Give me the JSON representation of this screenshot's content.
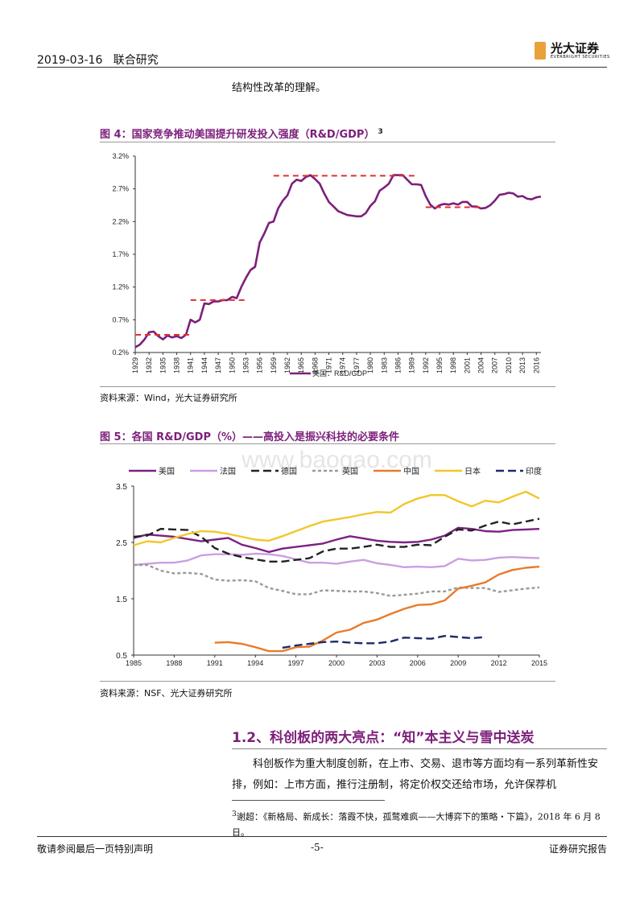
{
  "header": {
    "date": "2019-03-16",
    "section": "联合研究",
    "logo_cn": "光大证券",
    "logo_en": "EVERBRIGHT SECURITIES"
  },
  "intro_text": "结构性改革的理解。",
  "figure4": {
    "title": "图 4：国家竞争推动美国提升研发投入强度（R&D/GDP）",
    "footnote_ref": "3",
    "source": "资料来源：Wind，光大证券研究所",
    "legend": "美国：R&D/GDP"
  },
  "figure5": {
    "title": "图 5：各国 R&D/GDP（%）——高投入是振兴科技的必要条件",
    "source": "资料来源：NSF、光大证券研究所",
    "watermark": "www.baogao.com"
  },
  "section": {
    "heading": "1.2、科创板的两大亮点：“知”本主义与雪中送炭",
    "paragraph": "科创板作为重大制度创新，在上市、交易、退市等方面均有一系列革新性安排，例如：上市方面，推行注册制，将定价权交还给市场，允许保荐机"
  },
  "footnote": {
    "num": "3",
    "text": "谢超：《新格局、新成长：落霞不快，孤鹜难疯——大博弈下的策略・下篇》，2018 年 6 月 8 日。"
  },
  "footer": {
    "left": "敬请参阅最后一页特别声明",
    "page": "-5-",
    "right": "证券研究报告"
  },
  "chart_data": [
    {
      "type": "line",
      "title": "",
      "ylim": [
        0.2,
        3.2
      ],
      "yticks": [
        "0.2%",
        "0.7%",
        "1.2%",
        "1.7%",
        "2.2%",
        "2.7%",
        "3.2%"
      ],
      "xticks": [
        "1929",
        "1932",
        "1935",
        "1938",
        "1941",
        "1944",
        "1947",
        "1950",
        "1953",
        "1956",
        "1959",
        "1962",
        "1965",
        "1968",
        "1971",
        "1974",
        "1977",
        "1980",
        "1983",
        "1986",
        "1989",
        "1992",
        "1995",
        "1998",
        "2001",
        "2004",
        "2007",
        "2010",
        "2013",
        "2016"
      ],
      "colors": {
        "line": "#7c1f7a",
        "ref": "#e03030"
      },
      "series": [
        {
          "name": "美国：R&D/GDP",
          "x": [
            1929,
            1930,
            1931,
            1932,
            1933,
            1934,
            1935,
            1936,
            1937,
            1938,
            1939,
            1940,
            1941,
            1942,
            1943,
            1944,
            1945,
            1946,
            1947,
            1948,
            1949,
            1950,
            1951,
            1952,
            1953,
            1954,
            1955,
            1956,
            1957,
            1958,
            1959,
            1960,
            1961,
            1962,
            1963,
            1964,
            1965,
            1966,
            1967,
            1968,
            1969,
            1970,
            1971,
            1972,
            1973,
            1974,
            1975,
            1976,
            1977,
            1978,
            1979,
            1980,
            1981,
            1982,
            1983,
            1984,
            1985,
            1986,
            1987,
            1988,
            1989,
            1990,
            1991,
            1992,
            1993,
            1994,
            1995,
            1996,
            1997,
            1998,
            1999,
            2000,
            2001,
            2002,
            2003,
            2004,
            2005,
            2006,
            2007,
            2008,
            2009,
            2010,
            2011,
            2012,
            2013,
            2014,
            2015,
            2016,
            2017
          ],
          "values": [
            0.28,
            0.32,
            0.4,
            0.51,
            0.52,
            0.45,
            0.4,
            0.46,
            0.43,
            0.45,
            0.42,
            0.47,
            0.7,
            0.66,
            0.7,
            0.95,
            0.94,
            0.98,
            0.98,
            1.0,
            1.0,
            1.05,
            1.03,
            1.2,
            1.34,
            1.46,
            1.51,
            1.88,
            2.02,
            2.18,
            2.2,
            2.4,
            2.52,
            2.6,
            2.78,
            2.84,
            2.82,
            2.88,
            2.91,
            2.85,
            2.78,
            2.63,
            2.5,
            2.43,
            2.36,
            2.33,
            2.3,
            2.29,
            2.28,
            2.28,
            2.33,
            2.44,
            2.51,
            2.67,
            2.72,
            2.78,
            2.91,
            2.91,
            2.91,
            2.84,
            2.77,
            2.77,
            2.76,
            2.59,
            2.46,
            2.4,
            2.45,
            2.47,
            2.46,
            2.48,
            2.46,
            2.5,
            2.5,
            2.43,
            2.43,
            2.4,
            2.41,
            2.45,
            2.52,
            2.61,
            2.62,
            2.64,
            2.63,
            2.58,
            2.59,
            2.55,
            2.54,
            2.57,
            2.58
          ]
        }
      ],
      "reference_lines": [
        {
          "x": [
            1929,
            1941
          ],
          "y": 0.47
        },
        {
          "x": [
            1941,
            1953
          ],
          "y": 1.0
        },
        {
          "x": [
            1959,
            1990
          ],
          "y": 2.9
        },
        {
          "x": [
            1992,
            2004
          ],
          "y": 2.42
        }
      ]
    },
    {
      "type": "line",
      "title": "",
      "ylim": [
        0.5,
        3.5
      ],
      "yticks": [
        "0.5",
        "1.5",
        "2.5",
        "3.5"
      ],
      "xticks": [
        "1985",
        "1988",
        "1991",
        "1994",
        "1997",
        "2000",
        "2003",
        "2006",
        "2009",
        "2012",
        "2015"
      ],
      "legend_position": "top",
      "x": [
        1985,
        1986,
        1987,
        1988,
        1989,
        1990,
        1991,
        1992,
        1993,
        1994,
        1995,
        1996,
        1997,
        1998,
        1999,
        2000,
        2001,
        2002,
        2003,
        2004,
        2005,
        2006,
        2007,
        2008,
        2009,
        2010,
        2011,
        2012,
        2013,
        2014,
        2015
      ],
      "series": [
        {
          "name": "美国",
          "color": "#7b2182",
          "dash": "solid",
          "values": [
            2.58,
            2.64,
            2.62,
            2.6,
            2.56,
            2.52,
            2.55,
            2.58,
            2.46,
            2.4,
            2.33,
            2.39,
            2.42,
            2.45,
            2.48,
            2.55,
            2.61,
            2.57,
            2.53,
            2.51,
            2.5,
            2.51,
            2.55,
            2.62,
            2.76,
            2.74,
            2.7,
            2.69,
            2.72,
            2.73,
            2.74
          ]
        },
        {
          "name": "法国",
          "color": "#c9a0e0",
          "dash": "solid",
          "values": [
            2.1,
            2.12,
            2.14,
            2.14,
            2.18,
            2.27,
            2.29,
            2.29,
            2.28,
            2.3,
            2.29,
            2.26,
            2.2,
            2.14,
            2.14,
            2.12,
            2.16,
            2.19,
            2.13,
            2.1,
            2.06,
            2.07,
            2.06,
            2.08,
            2.21,
            2.18,
            2.19,
            2.23,
            2.24,
            2.23,
            2.22
          ]
        },
        {
          "name": "德国",
          "color": "#222222",
          "dash": "long",
          "values": [
            2.6,
            2.62,
            2.74,
            2.73,
            2.72,
            2.6,
            2.4,
            2.3,
            2.24,
            2.2,
            2.16,
            2.16,
            2.19,
            2.22,
            2.34,
            2.39,
            2.39,
            2.42,
            2.46,
            2.42,
            2.42,
            2.46,
            2.45,
            2.6,
            2.73,
            2.71,
            2.8,
            2.87,
            2.82,
            2.87,
            2.92
          ]
        },
        {
          "name": "英国",
          "color": "#9a9a9a",
          "dash": "short",
          "values": [
            2.1,
            2.1,
            2.0,
            1.95,
            1.96,
            1.94,
            1.84,
            1.82,
            1.83,
            1.81,
            1.69,
            1.64,
            1.58,
            1.58,
            1.65,
            1.64,
            1.63,
            1.63,
            1.6,
            1.55,
            1.57,
            1.59,
            1.63,
            1.63,
            1.7,
            1.69,
            1.69,
            1.62,
            1.65,
            1.68,
            1.7
          ]
        },
        {
          "name": "中国",
          "color": "#ea7a2a",
          "dash": "solid",
          "x": [
            1991,
            1992,
            1993,
            1994,
            1995,
            1996,
            1997,
            1998,
            1999,
            2000,
            2001,
            2002,
            2003,
            2004,
            2005,
            2006,
            2007,
            2008,
            2009,
            2010,
            2011,
            2012,
            2013,
            2014,
            2015
          ],
          "values": [
            0.72,
            0.73,
            0.7,
            0.64,
            0.57,
            0.57,
            0.64,
            0.65,
            0.76,
            0.9,
            0.95,
            1.07,
            1.13,
            1.23,
            1.32,
            1.39,
            1.4,
            1.47,
            1.68,
            1.73,
            1.79,
            1.93,
            2.01,
            2.05,
            2.07
          ]
        },
        {
          "name": "日本",
          "color": "#f2c62a",
          "dash": "solid",
          "values": [
            2.45,
            2.52,
            2.5,
            2.58,
            2.65,
            2.7,
            2.69,
            2.65,
            2.6,
            2.55,
            2.53,
            2.61,
            2.7,
            2.79,
            2.87,
            2.91,
            2.95,
            3.0,
            3.04,
            3.03,
            3.18,
            3.28,
            3.34,
            3.34,
            3.23,
            3.14,
            3.24,
            3.21,
            3.31,
            3.4,
            3.28
          ]
        },
        {
          "name": "印度",
          "color": "#1f2a6b",
          "dash": "long",
          "x": [
            1996,
            1997,
            1998,
            1999,
            2000,
            2001,
            2002,
            2003,
            2004,
            2005,
            2006,
            2007,
            2008,
            2009,
            2010,
            2011
          ],
          "values": [
            0.63,
            0.67,
            0.7,
            0.73,
            0.74,
            0.72,
            0.71,
            0.71,
            0.74,
            0.81,
            0.8,
            0.79,
            0.84,
            0.82,
            0.8,
            0.82
          ]
        }
      ]
    }
  ]
}
